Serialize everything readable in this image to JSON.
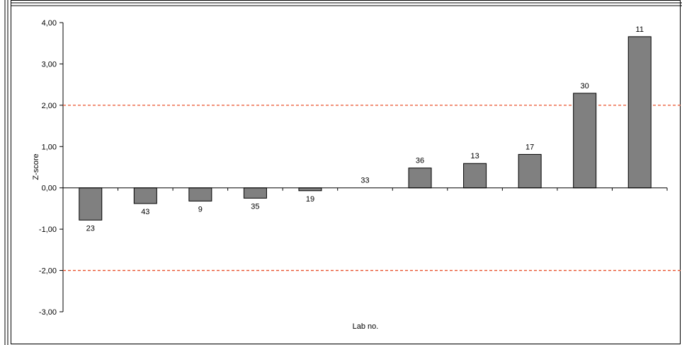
{
  "chart_data": {
    "type": "bar",
    "title": "",
    "xlabel": "Lab no.",
    "ylabel": "Z-score",
    "ylim": [
      -3,
      4
    ],
    "y_ticks": [
      "4,00",
      "3,00",
      "2,00",
      "1,00",
      "0,00",
      "-1,00",
      "-2,00",
      "-3,00"
    ],
    "categories": [
      "23",
      "43",
      "9",
      "35",
      "19",
      "33",
      "36",
      "13",
      "17",
      "30",
      "11"
    ],
    "values": [
      -0.78,
      -0.38,
      -0.32,
      -0.25,
      -0.07,
      0.0,
      0.48,
      0.59,
      0.81,
      2.29,
      3.66
    ],
    "reference_lines": [
      2.0,
      -2.0
    ],
    "colors": {
      "bar_fill": "#808080",
      "bar_stroke": "#000000",
      "reference_line": "#e8502a",
      "axis": "#000000"
    },
    "grid": false,
    "legend": "none"
  }
}
